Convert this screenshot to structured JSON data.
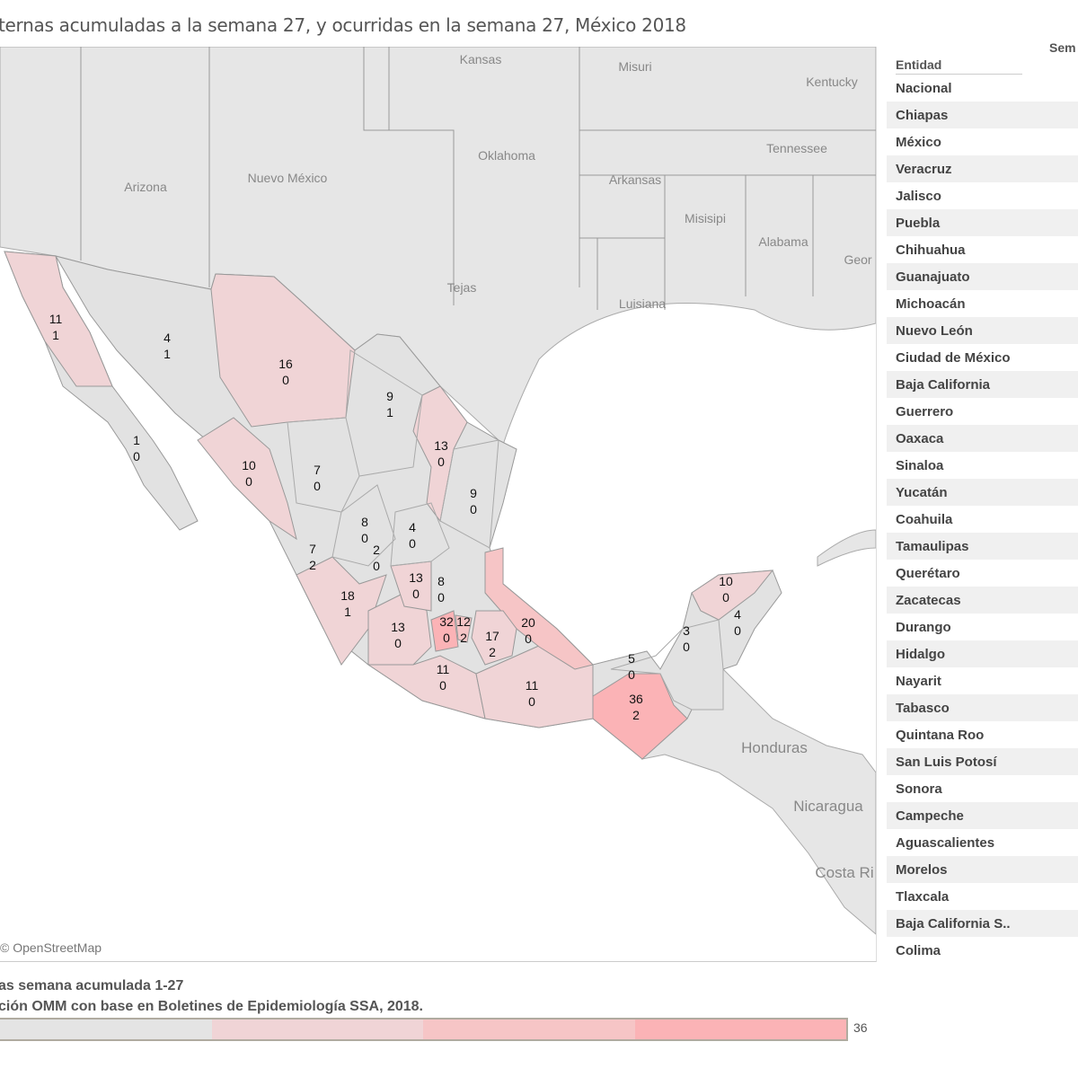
{
  "title": "ternas acumuladas a la semana 27, y ocurridas en la semana 27, México 2018",
  "attribution": "© OpenStreetMap",
  "table": {
    "col_entidad": "Entidad",
    "col_sem": "Sem",
    "rows": [
      "Nacional",
      "Chiapas",
      "México",
      "Veracruz",
      "Jalisco",
      "Puebla",
      "Chihuahua",
      "Guanajuato",
      "Michoacán",
      "Nuevo León",
      "Ciudad de México",
      "Baja California",
      "Guerrero",
      "Oaxaca",
      "Sinaloa",
      "Yucatán",
      "Coahuila",
      "Tamaulipas",
      "Querétaro",
      "Zacatecas",
      "Durango",
      "Hidalgo",
      "Nayarit",
      "Tabasco",
      "Quintana Roo",
      "San Luis Potosí",
      "Sonora",
      "Campeche",
      "Aguascalientes",
      "Morelos",
      "Tlaxcala",
      "Baja California S..",
      "Colima"
    ]
  },
  "legend": {
    "line1": "as semana acumulada 1-27",
    "line2": "ción OMM con base en Boletines de Epidemiología SSA, 2018.",
    "max": "36",
    "colors": [
      "#e4e4e4",
      "#f0d4d6",
      "#f6c5c6",
      "#fbb3b6"
    ]
  },
  "map_labels": {
    "us": [
      "Kansas",
      "Misuri",
      "Kentucky",
      "Oklahoma",
      "Tennessee",
      "Arkansas",
      "Arizona",
      "Nuevo México",
      "Misisipi",
      "Alabama",
      "Geor",
      "Tejas",
      "Luisiana"
    ],
    "ca": [
      "Honduras",
      "Nicaragua",
      "Costa Ri"
    ]
  },
  "states": [
    {
      "name": "Baja California",
      "acc": "11",
      "week": "1"
    },
    {
      "name": "Sonora",
      "acc": "4",
      "week": "1"
    },
    {
      "name": "Chihuahua",
      "acc": "16",
      "week": "0"
    },
    {
      "name": "Baja California Sur",
      "acc": "1",
      "week": "0"
    },
    {
      "name": "Coahuila",
      "acc": "9",
      "week": "1"
    },
    {
      "name": "Nuevo León",
      "acc": "13",
      "week": "0"
    },
    {
      "name": "Tamaulipas",
      "acc": "9",
      "week": "0"
    },
    {
      "name": "Sinaloa",
      "acc": "10",
      "week": "0"
    },
    {
      "name": "Durango",
      "acc": "7",
      "week": "0"
    },
    {
      "name": "Zacatecas",
      "acc": "8",
      "week": "0"
    },
    {
      "name": "San Luis Potosí",
      "acc": "4",
      "week": "0"
    },
    {
      "name": "Aguascalientes",
      "acc": "2",
      "week": "0"
    },
    {
      "name": "Nayarit",
      "acc": "7",
      "week": "2"
    },
    {
      "name": "Jalisco",
      "acc": "18",
      "week": "1"
    },
    {
      "name": "Guanajuato",
      "acc": "13",
      "week": "0"
    },
    {
      "name": "Querétaro",
      "acc": "8",
      "week": "0"
    },
    {
      "name": "Michoacán",
      "acc": "13",
      "week": "0"
    },
    {
      "name": "México",
      "acc": "32",
      "week": "0"
    },
    {
      "name": "Ciudad de México",
      "acc": "12",
      "week": "2"
    },
    {
      "name": "Puebla",
      "acc": "17",
      "week": "2"
    },
    {
      "name": "Veracruz",
      "acc": "20",
      "week": "0"
    },
    {
      "name": "Guerrero",
      "acc": "11",
      "week": "0"
    },
    {
      "name": "Oaxaca",
      "acc": "11",
      "week": "0"
    },
    {
      "name": "Chiapas",
      "acc": "36",
      "week": "2"
    },
    {
      "name": "Tabasco",
      "acc": "5",
      "week": "0"
    },
    {
      "name": "Campeche",
      "acc": "3",
      "week": "0"
    },
    {
      "name": "Yucatán",
      "acc": "10",
      "week": "0"
    },
    {
      "name": "Quintana Roo",
      "acc": "4",
      "week": "0"
    }
  ]
}
